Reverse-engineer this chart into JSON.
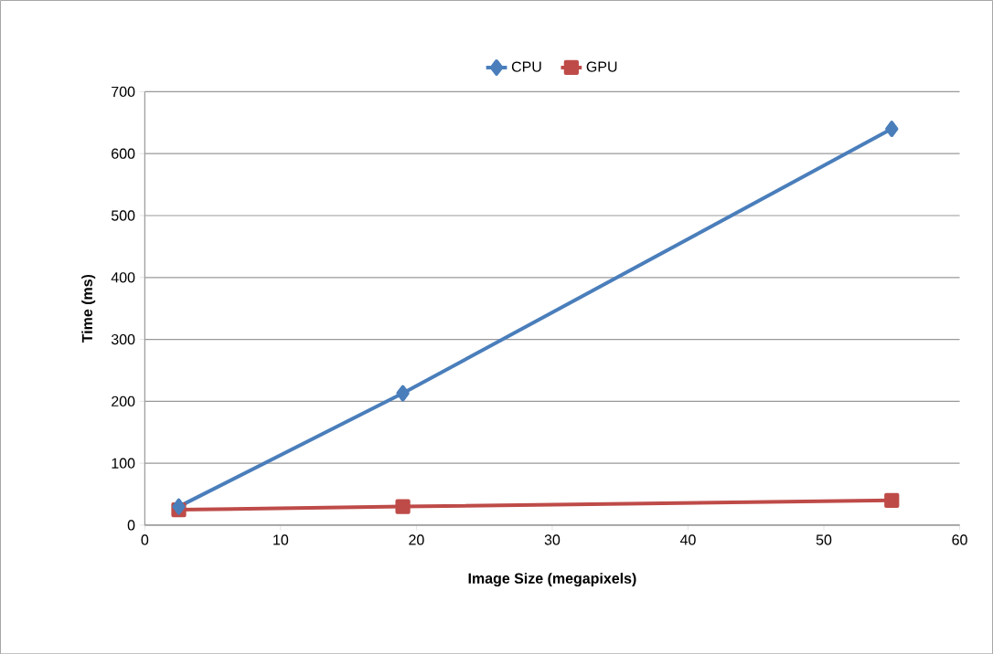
{
  "chart_data": {
    "type": "line",
    "xlabel": "Image Size (megapixels)",
    "ylabel": "Time (ms)",
    "xlim": [
      0,
      60
    ],
    "xticks": [
      0,
      10,
      20,
      30,
      40,
      50,
      60
    ],
    "ylim": [
      0,
      700
    ],
    "yticks": [
      0,
      100,
      200,
      300,
      400,
      500,
      600,
      700
    ],
    "grid": "y",
    "legend": "top",
    "line_style": "solid",
    "series": [
      {
        "name": "CPU",
        "color": "#4a7ebb",
        "marker": "diamond",
        "x": [
          2.5,
          19,
          55
        ],
        "values": [
          30,
          213,
          640
        ]
      },
      {
        "name": "GPU",
        "color": "#be4b48",
        "marker": "square",
        "x": [
          2.5,
          19,
          55
        ],
        "values": [
          25,
          30,
          40
        ]
      }
    ]
  }
}
